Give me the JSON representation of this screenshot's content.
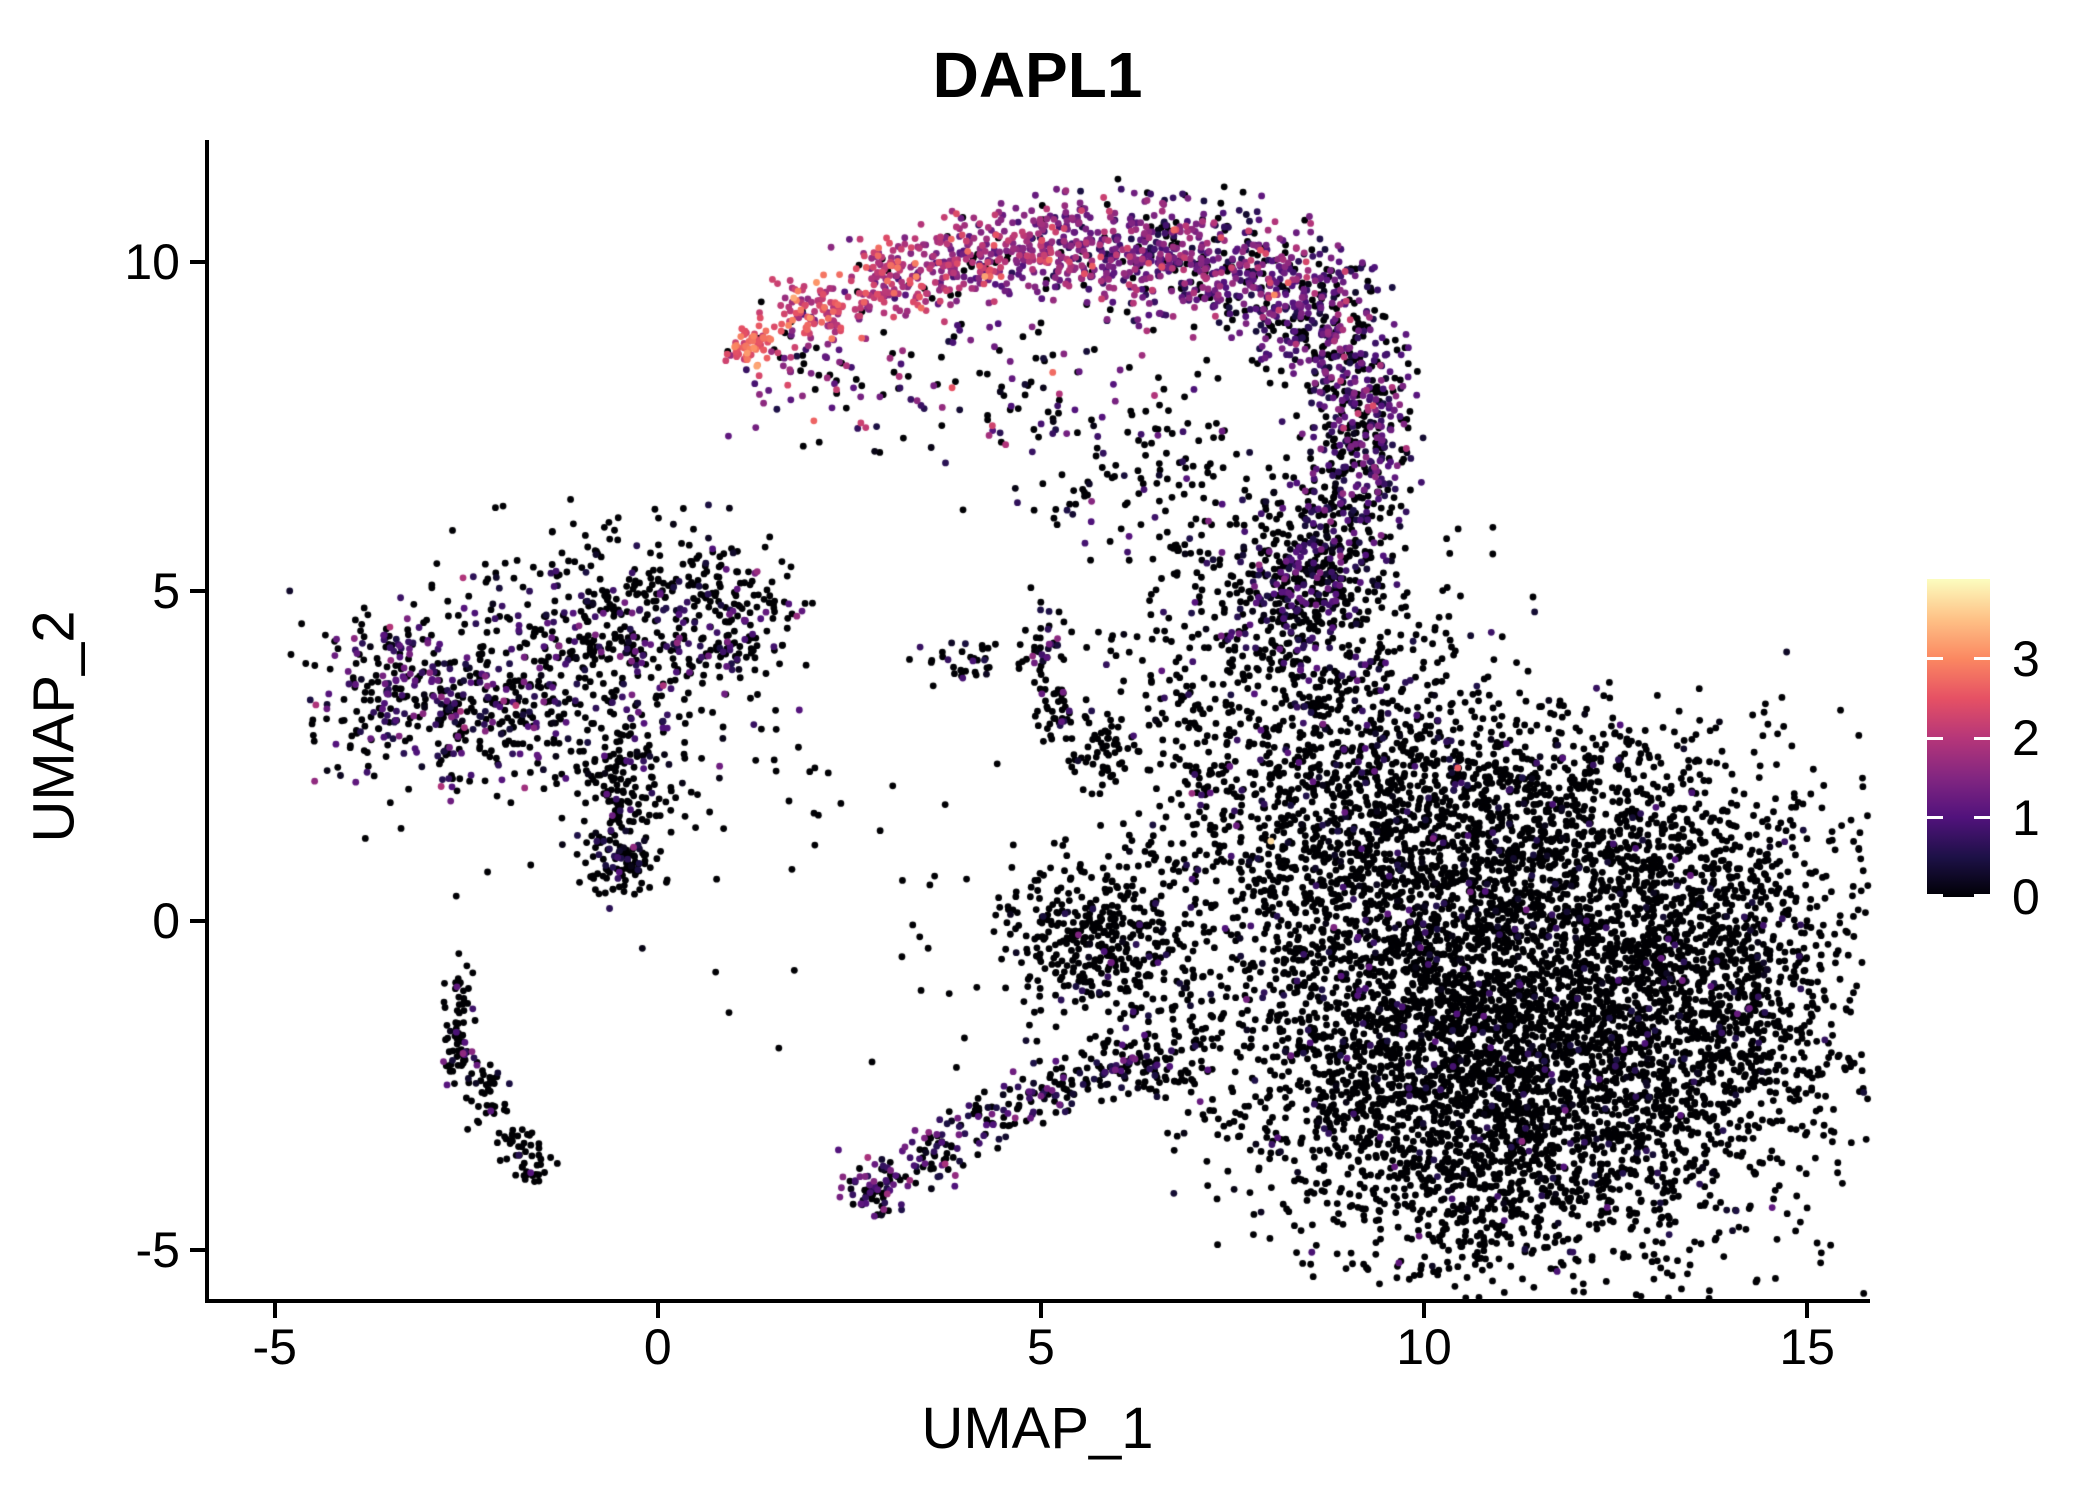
{
  "chart_data": {
    "type": "scatter",
    "title": "DAPL1",
    "xlabel": "UMAP_1",
    "ylabel": "UMAP_2",
    "xlim": [
      -5.91,
      15.82
    ],
    "ylim": [
      -5.8,
      11.85
    ],
    "x_ticks": [
      {
        "value": -5,
        "label": "-5"
      },
      {
        "value": 0,
        "label": "0"
      },
      {
        "value": 5,
        "label": "5"
      },
      {
        "value": 10,
        "label": "10"
      },
      {
        "value": 15,
        "label": "15"
      }
    ],
    "y_ticks": [
      {
        "value": -5,
        "label": "-5"
      },
      {
        "value": 0,
        "label": "0"
      },
      {
        "value": 5,
        "label": "5"
      },
      {
        "value": 10,
        "label": "10"
      }
    ],
    "grid": false,
    "legend_position": "right",
    "point_radius_px": 3.4,
    "color_scale": {
      "name": "magma",
      "domain": [
        0,
        4
      ],
      "ticks": [
        {
          "value": 0,
          "label": "0"
        },
        {
          "value": 1,
          "label": "1"
        },
        {
          "value": 2,
          "label": "2"
        },
        {
          "value": 3,
          "label": "3"
        }
      ],
      "stops": [
        {
          "t": 0.0,
          "hex": "#000004"
        },
        {
          "t": 0.125,
          "hex": "#1d1147"
        },
        {
          "t": 0.25,
          "hex": "#51127c"
        },
        {
          "t": 0.375,
          "hex": "#822681"
        },
        {
          "t": 0.5,
          "hex": "#b63679"
        },
        {
          "t": 0.625,
          "hex": "#e65164"
        },
        {
          "t": 0.75,
          "hex": "#fb8861"
        },
        {
          "t": 0.875,
          "hex": "#fec287"
        },
        {
          "t": 1.0,
          "hex": "#fcfdbf"
        }
      ]
    },
    "seed": 42,
    "clusters": [
      {
        "name": "arc-tip",
        "x": 1.2,
        "y": 8.74,
        "sx": 0.16,
        "sy": 0.15,
        "n": 60,
        "zero": 0.02,
        "mu": 2.55,
        "sd": 0.35
      },
      {
        "name": "arc-2",
        "x": 2.11,
        "y": 9.27,
        "sx": 0.33,
        "sy": 0.24,
        "n": 110,
        "zero": 0.04,
        "mu": 2.2,
        "sd": 0.4
      },
      {
        "name": "arc-3",
        "x": 3.16,
        "y": 9.73,
        "sx": 0.39,
        "sy": 0.3,
        "n": 150,
        "zero": 0.06,
        "mu": 1.9,
        "sd": 0.45
      },
      {
        "name": "arc-4",
        "x": 4.2,
        "y": 10.11,
        "sx": 0.42,
        "sy": 0.33,
        "n": 170,
        "zero": 0.08,
        "mu": 1.7,
        "sd": 0.45
      },
      {
        "name": "arc-5",
        "x": 5.25,
        "y": 10.26,
        "sx": 0.44,
        "sy": 0.39,
        "n": 190,
        "zero": 0.1,
        "mu": 1.5,
        "sd": 0.5
      },
      {
        "name": "arc-6",
        "x": 6.29,
        "y": 10.18,
        "sx": 0.47,
        "sy": 0.46,
        "n": 210,
        "zero": 0.14,
        "mu": 1.35,
        "sd": 0.5
      },
      {
        "name": "arc-7",
        "x": 7.34,
        "y": 9.96,
        "sx": 0.5,
        "sy": 0.52,
        "n": 230,
        "zero": 0.18,
        "mu": 1.2,
        "sd": 0.5
      },
      {
        "name": "arc-8",
        "x": 8.25,
        "y": 9.42,
        "sx": 0.47,
        "sy": 0.55,
        "n": 230,
        "zero": 0.28,
        "mu": 1.1,
        "sd": 0.5
      },
      {
        "name": "arc-9",
        "x": 8.9,
        "y": 8.74,
        "sx": 0.39,
        "sy": 0.61,
        "n": 200,
        "zero": 0.34,
        "mu": 1.0,
        "sd": 0.5
      },
      {
        "name": "arc-10",
        "x": 9.29,
        "y": 7.6,
        "sx": 0.33,
        "sy": 0.68,
        "n": 180,
        "zero": 0.42,
        "mu": 0.95,
        "sd": 0.45
      },
      {
        "name": "arc-11",
        "x": 9.03,
        "y": 6.39,
        "sx": 0.37,
        "sy": 0.73,
        "n": 170,
        "zero": 0.52,
        "mu": 0.9,
        "sd": 0.45
      },
      {
        "name": "arc-12",
        "x": 8.51,
        "y": 5.33,
        "sx": 0.39,
        "sy": 0.68,
        "n": 150,
        "zero": 0.58,
        "mu": 0.85,
        "sd": 0.4
      },
      {
        "name": "arc-under-trail",
        "x": 2.0,
        "y": 8.3,
        "sx": 0.55,
        "sy": 0.5,
        "n": 70,
        "zero": 0.3,
        "mu": 1.6,
        "sd": 0.5
      },
      {
        "name": "arc-bowl",
        "x": 4.46,
        "y": 8.06,
        "sx": 1.17,
        "sy": 0.76,
        "n": 110,
        "zero": 0.5,
        "mu": 1.1,
        "sd": 0.6
      },
      {
        "name": "arc-fringe",
        "x": 6.42,
        "y": 6.69,
        "sx": 0.78,
        "sy": 0.68,
        "n": 110,
        "zero": 0.75,
        "mu": 0.7,
        "sd": 0.4
      },
      {
        "name": "neck",
        "x": 8.38,
        "y": 5.02,
        "sx": 0.59,
        "sy": 0.83,
        "n": 260,
        "zero": 0.6,
        "mu": 0.8,
        "sd": 0.4
      },
      {
        "name": "neck-bridge",
        "x": 6.81,
        "y": 4.87,
        "sx": 0.55,
        "sy": 0.75,
        "n": 60,
        "zero": 0.8,
        "mu": 0.7,
        "sd": 0.4
      },
      {
        "name": "left-lobe-1",
        "x": -3.63,
        "y": 3.51,
        "sx": 0.5,
        "sy": 0.64,
        "n": 170,
        "zero": 0.58,
        "mu": 0.9,
        "sd": 0.45
      },
      {
        "name": "left-lobe-2",
        "x": -2.52,
        "y": 3.35,
        "sx": 0.59,
        "sy": 0.73,
        "n": 220,
        "zero": 0.62,
        "mu": 0.9,
        "sd": 0.45
      },
      {
        "name": "left-main",
        "x": -0.76,
        "y": 3.96,
        "sx": 0.89,
        "sy": 1.03,
        "n": 430,
        "zero": 0.72,
        "mu": 0.85,
        "sd": 0.45
      },
      {
        "name": "left-arm-up",
        "x": 0.42,
        "y": 4.87,
        "sx": 0.68,
        "sy": 0.52,
        "n": 150,
        "zero": 0.75,
        "mu": 0.8,
        "sd": 0.4
      },
      {
        "name": "left-arm-right",
        "x": 1.14,
        "y": 4.26,
        "sx": 0.43,
        "sy": 0.5,
        "n": 90,
        "zero": 0.75,
        "mu": 0.8,
        "sd": 0.4
      },
      {
        "name": "left-tail",
        "x": -0.43,
        "y": 1.61,
        "sx": 0.29,
        "sy": 0.79,
        "n": 150,
        "zero": 0.8,
        "mu": 0.7,
        "sd": 0.4
      },
      {
        "name": "left-tail-tip",
        "x": -0.5,
        "y": 0.99,
        "sx": 0.23,
        "sy": 0.24,
        "n": 60,
        "zero": 0.85,
        "mu": 0.6,
        "sd": 0.35
      },
      {
        "name": "left-halo",
        "x": -1.2,
        "y": 3.3,
        "sx": 1.6,
        "sy": 1.5,
        "n": 80,
        "zero": 0.8,
        "mu": 0.7,
        "sd": 0.4
      },
      {
        "name": "streak-1",
        "x": -2.59,
        "y": -1.26,
        "sx": 0.1,
        "sy": 0.33,
        "n": 35,
        "zero": 0.9,
        "mu": 0.6,
        "sd": 0.35
      },
      {
        "name": "streak-2",
        "x": -2.59,
        "y": -2.1,
        "sx": 0.13,
        "sy": 0.21,
        "n": 40,
        "zero": 0.76,
        "mu": 0.8,
        "sd": 0.45
      },
      {
        "name": "streak-3",
        "x": -2.26,
        "y": -2.72,
        "sx": 0.18,
        "sy": 0.24,
        "n": 35,
        "zero": 0.95,
        "mu": 0.5,
        "sd": 0.3
      },
      {
        "name": "streak-4",
        "x": -1.84,
        "y": -3.41,
        "sx": 0.16,
        "sy": 0.18,
        "n": 30,
        "zero": 0.95,
        "mu": 0.5,
        "sd": 0.3
      },
      {
        "name": "streak-5",
        "x": -1.6,
        "y": -3.83,
        "sx": 0.13,
        "sy": 0.13,
        "n": 20,
        "zero": 0.95,
        "mu": 0.5,
        "sd": 0.3
      },
      {
        "name": "mid-horiz",
        "x": 4.01,
        "y": 3.96,
        "sx": 0.39,
        "sy": 0.18,
        "n": 35,
        "zero": 0.85,
        "mu": 0.6,
        "sd": 0.35
      },
      {
        "name": "mid-knot",
        "x": 4.96,
        "y": 4.08,
        "sx": 0.16,
        "sy": 0.18,
        "n": 25,
        "zero": 0.5,
        "mu": 1.1,
        "sd": 0.5
      },
      {
        "name": "mid-up-arm",
        "x": 5.2,
        "y": 4.55,
        "sx": 0.15,
        "sy": 0.28,
        "n": 10,
        "zero": 0.7,
        "mu": 0.8,
        "sd": 0.4
      },
      {
        "name": "mid-streak-a",
        "x": 5.17,
        "y": 3.28,
        "sx": 0.22,
        "sy": 0.28,
        "n": 45,
        "zero": 0.8,
        "mu": 0.7,
        "sd": 0.4
      },
      {
        "name": "mid-streak-b",
        "x": 5.7,
        "y": 2.62,
        "sx": 0.25,
        "sy": 0.3,
        "n": 55,
        "zero": 0.92,
        "mu": 0.5,
        "sd": 0.3
      },
      {
        "name": "center-blob",
        "x": 5.64,
        "y": -0.21,
        "sx": 0.59,
        "sy": 0.58,
        "n": 280,
        "zero": 0.93,
        "mu": 0.55,
        "sd": 0.35
      },
      {
        "name": "center-halo",
        "x": 5.5,
        "y": -0.5,
        "sx": 1.0,
        "sy": 0.9,
        "n": 80,
        "zero": 0.9,
        "mu": 0.5,
        "sd": 0.3
      },
      {
        "name": "arm-tip",
        "x": 2.83,
        "y": -4.01,
        "sx": 0.21,
        "sy": 0.24,
        "n": 70,
        "zero": 0.45,
        "mu": 0.9,
        "sd": 0.45
      },
      {
        "name": "arm-2",
        "x": 3.55,
        "y": -3.57,
        "sx": 0.26,
        "sy": 0.24,
        "n": 55,
        "zero": 0.55,
        "mu": 0.85,
        "sd": 0.45
      },
      {
        "name": "arm-3",
        "x": 4.34,
        "y": -3.02,
        "sx": 0.29,
        "sy": 0.24,
        "n": 55,
        "zero": 0.6,
        "mu": 0.85,
        "sd": 0.4
      },
      {
        "name": "arm-4",
        "x": 5.12,
        "y": -2.58,
        "sx": 0.29,
        "sy": 0.24,
        "n": 55,
        "zero": 0.6,
        "mu": 0.8,
        "sd": 0.4
      },
      {
        "name": "arm-5",
        "x": 5.9,
        "y": -2.28,
        "sx": 0.33,
        "sy": 0.27,
        "n": 60,
        "zero": 0.65,
        "mu": 0.75,
        "sd": 0.4
      },
      {
        "name": "arm-6",
        "x": 6.55,
        "y": -2.05,
        "sx": 0.33,
        "sy": 0.3,
        "n": 60,
        "zero": 0.7,
        "mu": 0.7,
        "sd": 0.4
      },
      {
        "name": "arm-gap",
        "x": 6.5,
        "y": -1.2,
        "sx": 0.8,
        "sy": 0.8,
        "n": 70,
        "zero": 0.9,
        "mu": 0.5,
        "sd": 0.3
      },
      {
        "name": "right-top-slope",
        "x": 11.25,
        "y": 1.68,
        "sx": 0.98,
        "sy": 0.83,
        "n": 420,
        "zero": 0.93,
        "mu": 0.55,
        "sd": 0.35
      },
      {
        "name": "right-top-lobe",
        "x": 8.58,
        "y": 2.46,
        "sx": 1.24,
        "sy": 1.59,
        "n": 1000,
        "zero": 0.88,
        "mu": 0.6,
        "sd": 0.35
      },
      {
        "name": "right-main-1",
        "x": 9.69,
        "y": -0.44,
        "sx": 1.44,
        "sy": 1.75,
        "n": 1500,
        "zero": 0.94,
        "mu": 0.55,
        "sd": 0.35
      },
      {
        "name": "right-main-2",
        "x": 12.17,
        "y": -1.35,
        "sx": 1.76,
        "sy": 1.9,
        "n": 2500,
        "zero": 0.95,
        "mu": 0.5,
        "sd": 0.35
      },
      {
        "name": "right-main-3",
        "x": 10.73,
        "y": -3.02,
        "sx": 1.5,
        "sy": 1.18,
        "n": 1200,
        "zero": 0.95,
        "mu": 0.5,
        "sd": 0.35
      },
      {
        "name": "right-bulge",
        "x": 13.86,
        "y": -0.44,
        "sx": 0.89,
        "sy": 1.34,
        "n": 650,
        "zero": 0.95,
        "mu": 0.5,
        "sd": 0.35
      },
      {
        "name": "right-halo",
        "x": 11.0,
        "y": 0.0,
        "sx": 2.6,
        "sy": 2.2,
        "n": 300,
        "zero": 0.93,
        "mu": 0.5,
        "sd": 0.3
      },
      {
        "name": "sparse-mid-gap",
        "x": 3.0,
        "y": 0.8,
        "sx": 1.6,
        "sy": 1.5,
        "n": 40,
        "zero": 0.92,
        "mu": 0.5,
        "sd": 0.3
      }
    ],
    "outliers": [
      {
        "x": 10.44,
        "y": 2.32,
        "v": 2.6
      },
      {
        "x": 8.0,
        "y": 1.21,
        "v": 3.7
      },
      {
        "x": 3.84,
        "y": 8.09,
        "v": 2.5
      },
      {
        "x": 0.07,
        "y": 3.57,
        "v": 1.9
      }
    ]
  }
}
